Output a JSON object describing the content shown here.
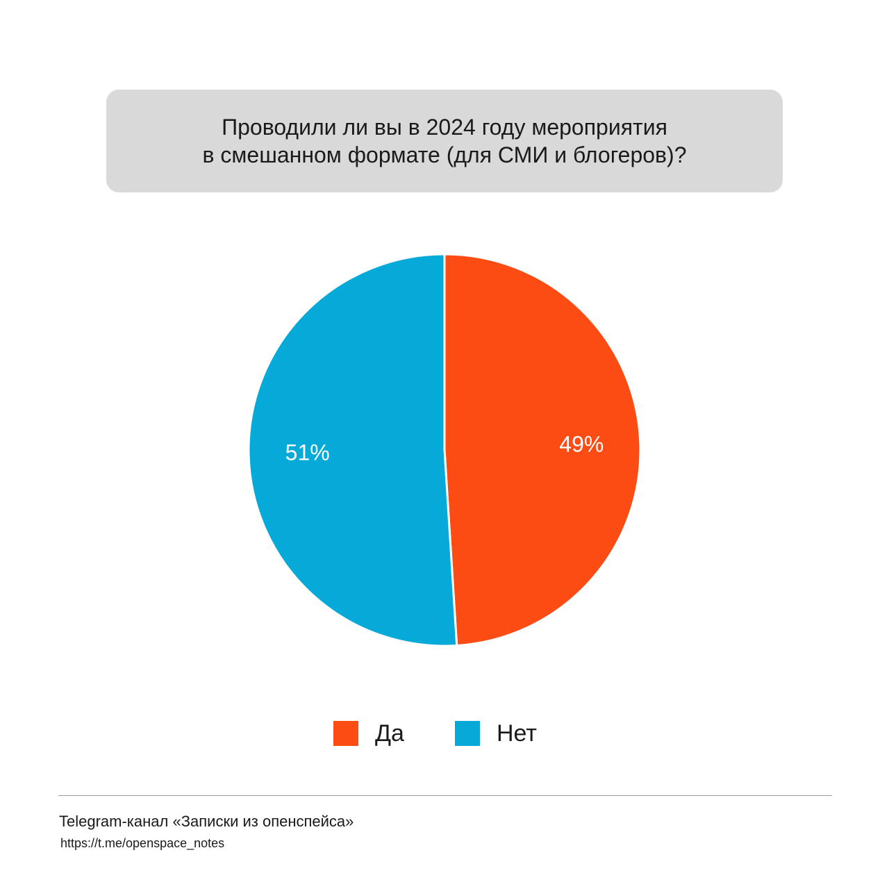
{
  "header": {
    "title_lines": [
      "Проводили ли вы в 2024 году мероприятия",
      "в смешанном формате (для СМИ и блогеров)?"
    ]
  },
  "chart_data": {
    "type": "pie",
    "title": "Проводили ли вы в 2024 году мероприятия в смешанном формате (для СМИ и блогеров)?",
    "categories": [
      "Да",
      "Нет"
    ],
    "values": [
      49,
      51
    ],
    "labels": [
      "49%",
      "51%"
    ],
    "colors": [
      "#fc4b13",
      "#05aad8"
    ],
    "start": "12 o'clock",
    "direction": "clockwise",
    "legend": "bottom"
  },
  "footer": {
    "channel": "Telegram-канал «Записки из опенспейса»",
    "link": "https://t.me/openspace_notes"
  }
}
